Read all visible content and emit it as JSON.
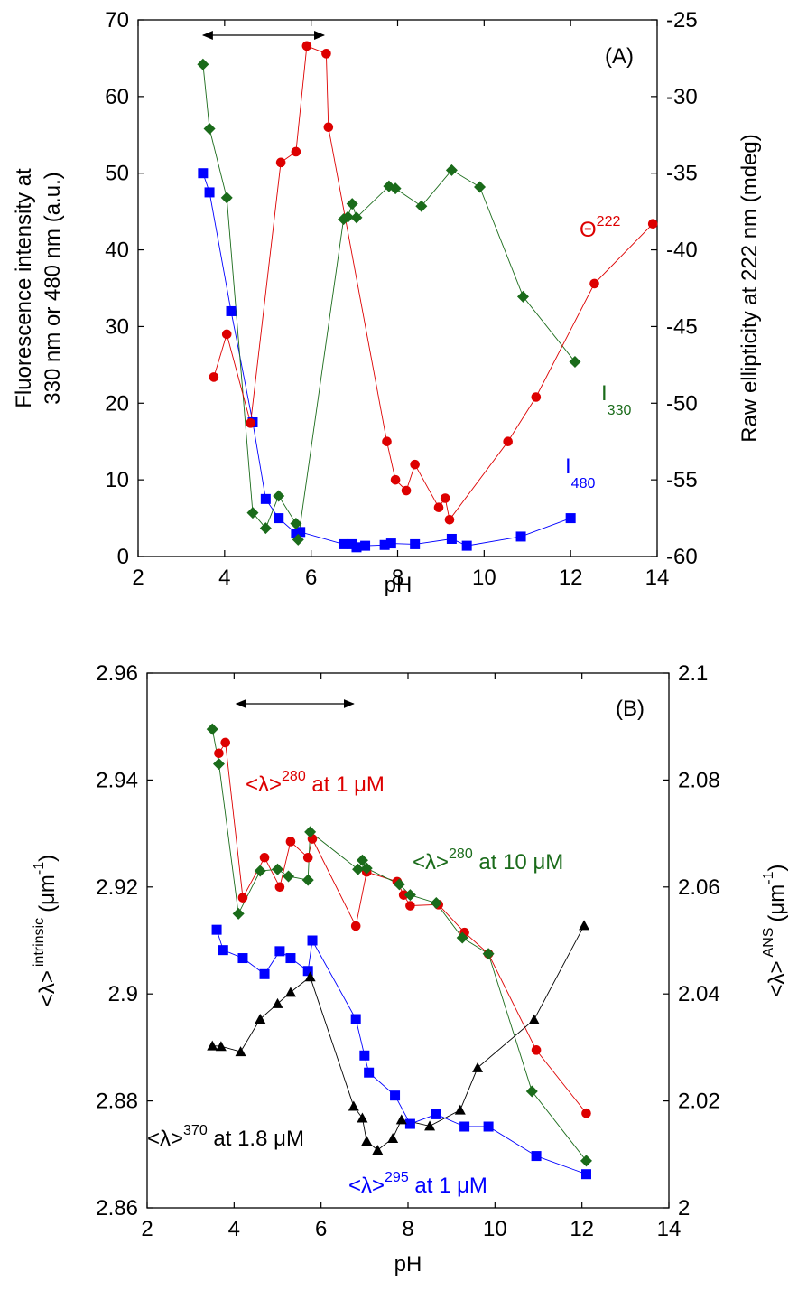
{
  "chart_data": [
    {
      "type": "scatter",
      "panel_label": "(A)",
      "xlabel": "pH",
      "ylabel_left_line1": "Fluorescence intensity at",
      "ylabel_left_line2": "330 nm or 480 nm (a.u.)",
      "ylabel_right": "Raw ellipticity at 222 nm (mdeg)",
      "xlim": [
        2,
        14
      ],
      "ylim_left": [
        0,
        70
      ],
      "ylim_right": [
        -60,
        -25
      ],
      "xticks": [
        "2",
        "4",
        "6",
        "8",
        "10",
        "12",
        "14"
      ],
      "yticks_left": [
        "0",
        "10",
        "20",
        "30",
        "40",
        "50",
        "60",
        "70"
      ],
      "yticks_right": [
        "-60",
        "-55",
        "-50",
        "-45",
        "-40",
        "-35",
        "-30",
        "-25"
      ],
      "range_arrow": [
        3.5,
        6.3
      ],
      "series": [
        {
          "name": "I480",
          "label_main": "I",
          "label_sub": "480",
          "axis": "left",
          "marker": "square",
          "color": "#0000ff",
          "x": [
            3.5,
            3.65,
            4.15,
            4.65,
            4.95,
            5.25,
            5.65,
            5.75,
            6.75,
            6.95,
            7.05,
            7.25,
            7.7,
            7.85,
            8.4,
            9.25,
            9.6,
            10.85,
            12.0
          ],
          "y": [
            50,
            47.5,
            32,
            17.5,
            7.5,
            5,
            3,
            3.2,
            1.6,
            1.6,
            1.2,
            1.4,
            1.5,
            1.7,
            1.6,
            2.3,
            1.4,
            2.6,
            5
          ]
        },
        {
          "name": "I330",
          "label_main": "I",
          "label_sub": "330",
          "axis": "left",
          "marker": "diamond",
          "color": "#1a6b1a",
          "x": [
            3.5,
            3.65,
            4.05,
            4.65,
            4.95,
            5.25,
            5.65,
            5.7,
            6.75,
            6.85,
            6.95,
            7.05,
            7.8,
            7.95,
            8.55,
            9.25,
            9.9,
            10.9,
            12.1
          ],
          "y": [
            64.2,
            55.8,
            46.8,
            5.7,
            3.7,
            7.9,
            4.3,
            2.2,
            44,
            44.3,
            46,
            44.2,
            48.3,
            48,
            45.7,
            50.4,
            48.2,
            33.9,
            25.4
          ]
        },
        {
          "name": "Θ222",
          "label_main": "Θ",
          "label_sub": "222",
          "axis": "right",
          "marker": "circle",
          "color": "#dd0000",
          "x": [
            3.75,
            4.05,
            4.6,
            5.3,
            5.65,
            5.9,
            6.35,
            6.4,
            7.75,
            7.95,
            8.2,
            8.4,
            8.95,
            9.1,
            9.2,
            10.55,
            11.2,
            12.55,
            13.9
          ],
          "y": [
            -48.3,
            -45.5,
            -51.3,
            -34.3,
            -33.6,
            -26.7,
            -27.2,
            -32,
            -52.5,
            -55,
            -55.7,
            -54,
            -56.8,
            -56.2,
            -57.6,
            -52.5,
            -49.6,
            -42.2,
            -38.3
          ]
        }
      ]
    },
    {
      "type": "scatter",
      "panel_label": "(B)",
      "xlabel": "pH",
      "ylabel_left_main": "<λ>",
      "ylabel_left_sup": "intrinsic",
      "ylabel_left_unit": "(μm",
      "ylabel_left_unit_sup": "-1",
      "ylabel_right_main": "<λ>",
      "ylabel_right_sup": "ANS",
      "ylabel_right_unit": "(μm",
      "ylabel_right_unit_sup": "-1",
      "xlim": [
        2,
        14
      ],
      "ylim_left": [
        2.86,
        2.96
      ],
      "ylim_right": [
        2.0,
        2.1
      ],
      "xticks": [
        "2",
        "4",
        "6",
        "8",
        "10",
        "12",
        "14"
      ],
      "yticks_left": [
        "2.86",
        "2.88",
        "2.9",
        "2.92",
        "2.94",
        "2.96"
      ],
      "yticks_right": [
        "2",
        "2.02",
        "2.04",
        "2.06",
        "2.08",
        "2.1"
      ],
      "range_arrow": [
        4.05,
        6.75
      ],
      "series": [
        {
          "name": "<λ>280 at 1 μM",
          "label_main": "<λ>",
          "label_sup": "280",
          "label_rest": " at 1 μM",
          "axis": "left",
          "marker": "circle",
          "color": "#dd0000",
          "x": [
            3.65,
            3.8,
            4.2,
            4.7,
            5.05,
            5.3,
            5.7,
            5.8,
            6.8,
            7.05,
            7.75,
            7.9,
            8.05,
            8.7,
            9.3,
            9.85,
            10.95,
            12.1
          ],
          "y": [
            2.945,
            2.947,
            2.918,
            2.9255,
            2.92,
            2.9285,
            2.9255,
            2.929,
            2.9127,
            2.9228,
            2.921,
            2.9185,
            2.9165,
            2.9167,
            2.9115,
            2.9075,
            2.8895,
            2.8777
          ]
        },
        {
          "name": "<λ>280 at 10 μM",
          "label_main": "<λ>",
          "label_sup": "280",
          "label_rest": " at 10 μM",
          "axis": "left",
          "marker": "diamond",
          "color": "#1a6b1a",
          "x": [
            3.5,
            3.65,
            4.1,
            4.6,
            5.0,
            5.25,
            5.7,
            5.75,
            6.85,
            6.95,
            7.05,
            7.8,
            8.05,
            8.65,
            9.25,
            9.85,
            10.85,
            12.1
          ],
          "y": [
            2.9495,
            2.943,
            2.915,
            2.923,
            2.9233,
            2.922,
            2.9213,
            2.9303,
            2.9233,
            2.925,
            2.9235,
            2.9205,
            2.9185,
            2.917,
            2.9105,
            2.9075,
            2.8818,
            2.8688
          ]
        },
        {
          "name": "<λ>295 at 1 μM",
          "label_main": "<λ>",
          "label_sup": "295",
          "label_rest": " at 1 μM",
          "axis": "left",
          "marker": "square",
          "color": "#0000ff",
          "x": [
            3.6,
            3.75,
            4.2,
            4.7,
            5.05,
            5.3,
            5.7,
            5.8,
            6.8,
            7.0,
            7.1,
            7.7,
            8.05,
            8.65,
            9.3,
            9.85,
            10.95,
            12.1
          ],
          "y": [
            2.912,
            2.9082,
            2.9067,
            2.9037,
            2.908,
            2.9067,
            2.9043,
            2.91,
            2.8953,
            2.8885,
            2.8853,
            2.881,
            2.8757,
            2.8775,
            2.8752,
            2.8752,
            2.8697,
            2.8663
          ]
        },
        {
          "name": "<λ>370 at 1.8 μM",
          "label_main": "<λ>",
          "label_sup": "370",
          "label_rest": " at 1.8 μM",
          "axis": "right",
          "marker": "triangle",
          "color": "#000000",
          "x": [
            3.5,
            3.7,
            4.15,
            4.6,
            5.0,
            5.3,
            5.75,
            6.75,
            6.95,
            7.05,
            7.3,
            7.65,
            7.85,
            8.5,
            9.2,
            9.6,
            10.9,
            12.05
          ],
          "y": [
            2.0303,
            2.0302,
            2.0292,
            2.0353,
            2.0382,
            2.0403,
            2.0432,
            2.019,
            2.0168,
            2.0125,
            2.0108,
            2.013,
            2.0165,
            2.0153,
            2.0183,
            2.0262,
            2.0352,
            2.0528
          ]
        }
      ]
    }
  ]
}
